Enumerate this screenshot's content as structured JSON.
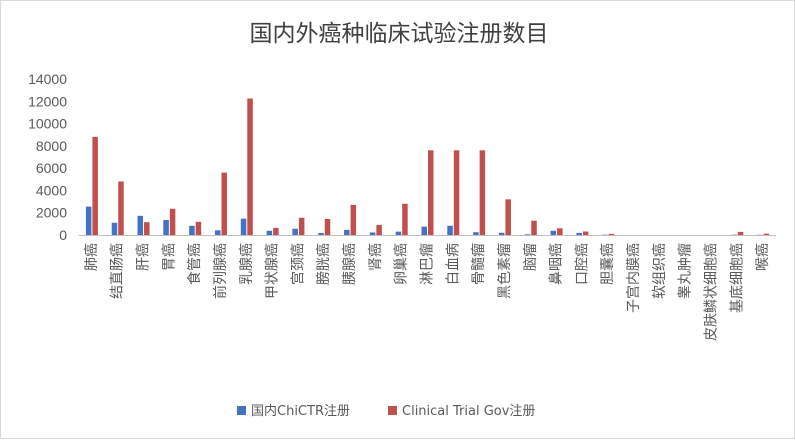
{
  "chart_data": {
    "type": "bar",
    "title": "国内外癌种临床试验注册数目",
    "xlabel": "",
    "ylabel": "",
    "ylim": [
      0,
      14000
    ],
    "yticks": [
      0,
      2000,
      4000,
      6000,
      8000,
      10000,
      12000,
      14000
    ],
    "grid": false,
    "legend_position": "bottom",
    "categories": [
      "肺癌",
      "结直肠癌",
      "肝癌",
      "胃癌",
      "食管癌",
      "前列腺癌",
      "乳腺癌",
      "甲状腺癌",
      "宫颈癌",
      "膀胱癌",
      "胰腺癌",
      "肾癌",
      "卵巢癌",
      "淋巴瘤",
      "白血病",
      "骨髓瘤",
      "黑色素瘤",
      "脑瘤",
      "鼻咽癌",
      "口腔癌",
      "胆囊癌",
      "子宫内膜癌",
      "软组织癌",
      "睾丸肿瘤",
      "皮肤鳞状细胞癌",
      "基底细胞癌",
      "喉癌"
    ],
    "series": [
      {
        "name": "国内ChiCTR注册",
        "color": "#4472c4",
        "values": [
          2550,
          1100,
          1720,
          1350,
          820,
          420,
          1470,
          380,
          560,
          180,
          460,
          230,
          300,
          750,
          830,
          250,
          200,
          60,
          380,
          180,
          30,
          0,
          0,
          0,
          0,
          30,
          20
        ]
      },
      {
        "name": "Clinical Trial Gov注册",
        "color": "#c0504d",
        "values": [
          8800,
          4800,
          1150,
          2350,
          1180,
          5600,
          12250,
          640,
          1550,
          1440,
          2700,
          900,
          2800,
          7600,
          7600,
          7600,
          3200,
          1280,
          600,
          310,
          100,
          0,
          0,
          0,
          0,
          280,
          120
        ]
      }
    ]
  }
}
